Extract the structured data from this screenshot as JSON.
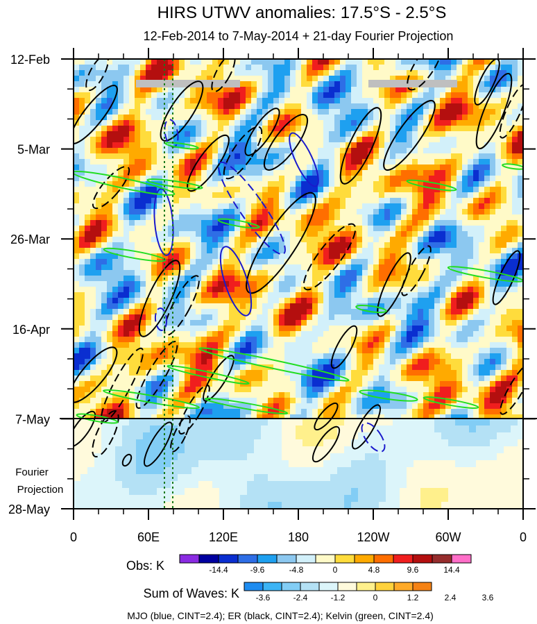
{
  "chart_data": {
    "type": "heatmap",
    "title": "HIRS UTWV anomalies: 17.5°S - 2.5°S",
    "subtitle": "12-Feb-2014 to 7-May-2014 + 21-day Fourier Projection",
    "y_tick_labels": [
      "12-Feb",
      "5-Mar",
      "26-Mar",
      "16-Apr",
      "7-May",
      "28-May"
    ],
    "x_tick_labels": [
      "0",
      "60E",
      "120E",
      "180",
      "120W",
      "60W",
      "0"
    ],
    "x_range_deg_east": [
      0,
      360
    ],
    "projection_label_line1": "Fourier",
    "projection_label_line2": "Projection",
    "observed_end": "7-May",
    "obs_colorbar": {
      "label": "Obs: K",
      "tick_labels": [
        "-14.4",
        "-9.6",
        "-4.8",
        "0",
        "4.8",
        "9.6",
        "14.4"
      ],
      "colors": [
        "#8a2be2",
        "#0000a0",
        "#0a2ed0",
        "#2e6ee6",
        "#1ea0f0",
        "#8cc8f0",
        "#d2f0fa",
        "#fffac8",
        "#ffdc3c",
        "#ffaa00",
        "#ff6e00",
        "#f01e1e",
        "#b40f0f",
        "#962d2d",
        "#ff6ec8"
      ]
    },
    "waves_colorbar": {
      "label": "Sum of Waves: K",
      "tick_labels": [
        "-3.6",
        "-2.4",
        "-1.2",
        "0",
        "1.2",
        "2.4",
        "3.6"
      ],
      "colors": [
        "#1e8cf0",
        "#3cb4f5",
        "#82cdf5",
        "#b4e1f5",
        "#dcf5fa",
        "#fffadc",
        "#fff08c",
        "#ffd23c",
        "#ffaa28",
        "#f58214"
      ]
    },
    "contours": [
      {
        "name": "MJO",
        "color": "blue",
        "cint": 2.4
      },
      {
        "name": "ER",
        "color": "black",
        "cint": 2.4
      },
      {
        "name": "Kelvin",
        "color": "green",
        "cint": 2.4
      }
    ],
    "caption": "MJO (blue, CINT=2.4); ER (black, CINT=2.4); Kelvin (green, CINT=2.4)"
  }
}
